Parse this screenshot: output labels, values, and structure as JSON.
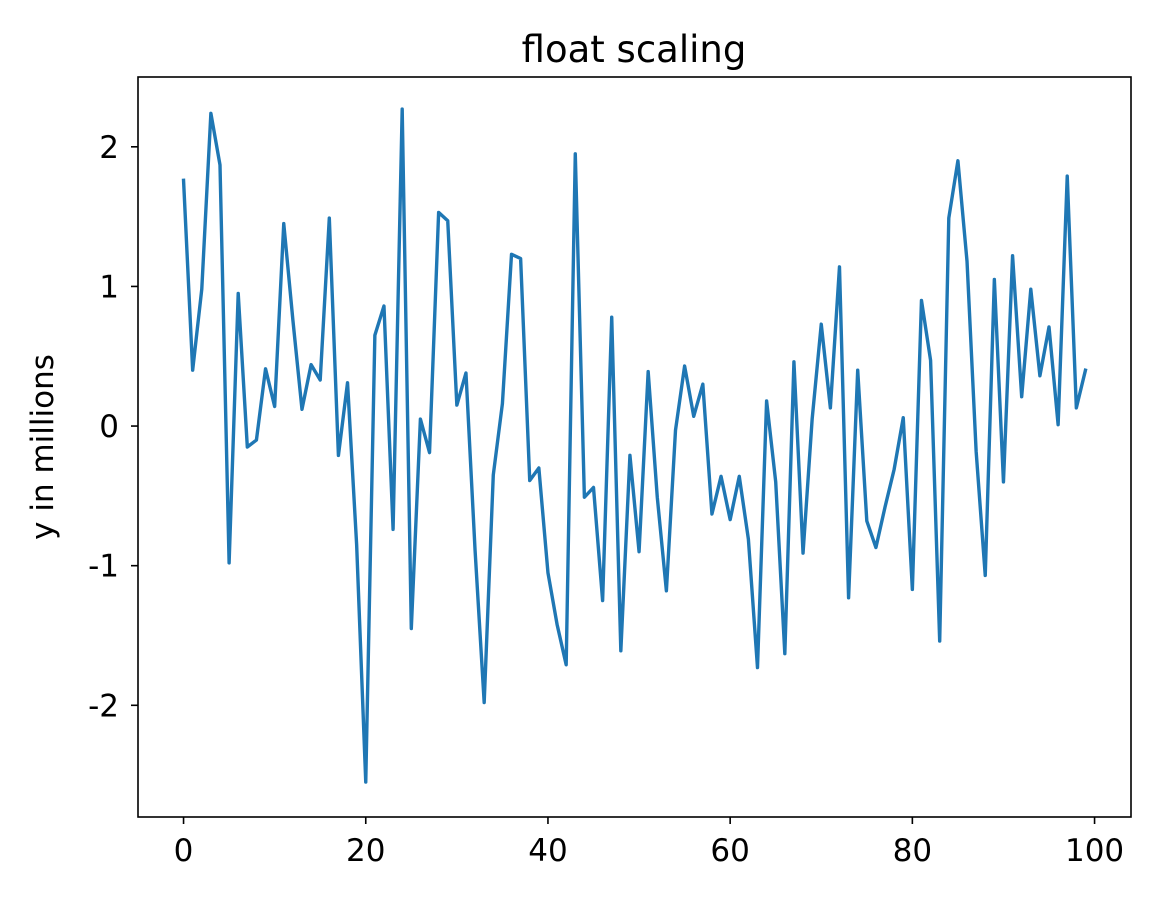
{
  "chart_data": {
    "type": "line",
    "title": "float scaling",
    "xlabel": "",
    "ylabel": "y in millions",
    "xlim": [
      -5,
      104
    ],
    "ylim": [
      -2.8,
      2.5
    ],
    "xticks": [
      0,
      20,
      40,
      60,
      80,
      100
    ],
    "xtick_labels": [
      "0",
      "20",
      "40",
      "60",
      "80",
      "100"
    ],
    "yticks": [
      2,
      1,
      0,
      -1,
      -2
    ],
    "ytick_labels": [
      "2",
      "1",
      "0",
      "-1",
      "-2"
    ],
    "grid": false,
    "series": [
      {
        "color": "#1f77b4",
        "x": [
          0,
          1,
          2,
          3,
          4,
          5,
          6,
          7,
          8,
          9,
          10,
          11,
          12,
          13,
          14,
          15,
          16,
          17,
          18,
          19,
          20,
          21,
          22,
          23,
          24,
          25,
          26,
          27,
          28,
          29,
          30,
          31,
          32,
          33,
          34,
          35,
          36,
          37,
          38,
          39,
          40,
          41,
          42,
          43,
          44,
          45,
          46,
          47,
          48,
          49,
          50,
          51,
          52,
          53,
          54,
          55,
          56,
          57,
          58,
          59,
          60,
          61,
          62,
          63,
          64,
          65,
          66,
          67,
          68,
          69,
          70,
          71,
          72,
          73,
          74,
          75,
          76,
          77,
          78,
          79,
          80,
          81,
          82,
          83,
          84,
          85,
          86,
          87,
          88,
          89,
          90,
          91,
          92,
          93,
          94,
          95,
          96,
          97,
          98,
          99
        ],
        "y": [
          1.76,
          0.4,
          0.98,
          2.24,
          1.87,
          -0.98,
          0.95,
          -0.15,
          -0.1,
          0.41,
          0.14,
          1.45,
          0.76,
          0.12,
          0.44,
          0.33,
          1.49,
          -0.21,
          0.31,
          -0.85,
          -2.55,
          0.65,
          0.86,
          -0.74,
          2.27,
          -1.45,
          0.05,
          -0.19,
          1.53,
          1.47,
          0.15,
          0.38,
          -0.89,
          -1.98,
          -0.35,
          0.16,
          1.23,
          1.2,
          -0.39,
          -0.3,
          -1.05,
          -1.42,
          -1.71,
          1.95,
          -0.51,
          -0.44,
          -1.25,
          0.78,
          -1.61,
          -0.21,
          -0.9,
          0.39,
          -0.51,
          -1.18,
          -0.03,
          0.43,
          0.07,
          0.3,
          -0.63,
          -0.36,
          -0.67,
          -0.36,
          -0.81,
          -1.73,
          0.18,
          -0.4,
          -1.63,
          0.46,
          -0.91,
          0.05,
          0.73,
          0.13,
          1.14,
          -1.23,
          0.4,
          -0.68,
          -0.87,
          -0.58,
          -0.31,
          0.06,
          -1.17,
          0.9,
          0.47,
          -1.54,
          1.49,
          1.9,
          1.18,
          -0.18,
          -1.07,
          1.05,
          -0.4,
          1.22,
          0.21,
          0.98,
          0.36,
          0.71,
          0.01,
          1.79,
          0.13,
          0.4
        ]
      }
    ]
  }
}
